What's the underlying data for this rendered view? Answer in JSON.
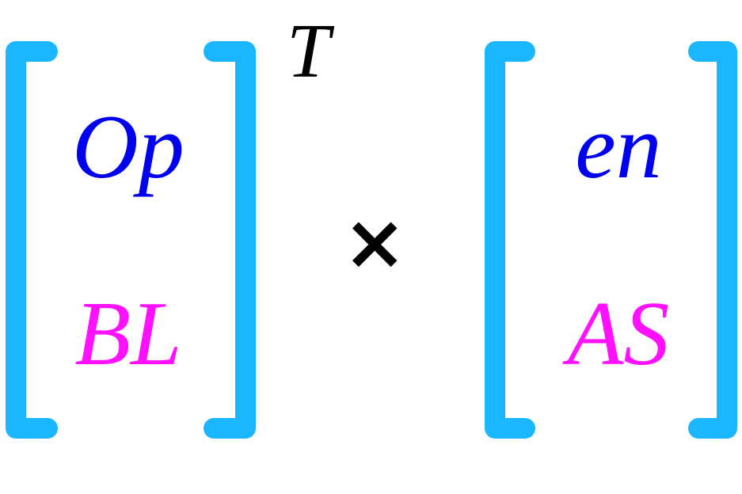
{
  "left_matrix": {
    "top": "Op",
    "bottom": "BL",
    "superscript": "T"
  },
  "operator": "×",
  "right_matrix": {
    "top": "en",
    "bottom": "AS"
  },
  "colors": {
    "bracket": "#1ab6ff",
    "top_entry": "#0000ee",
    "bottom_entry": "#ff10ff",
    "operator": "#000000"
  }
}
